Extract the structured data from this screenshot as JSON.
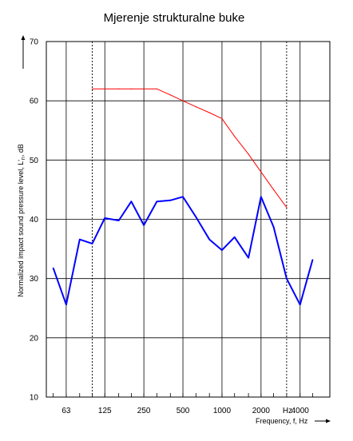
{
  "chart_data": {
    "type": "line",
    "title": "Mjerenje strukturalne buke",
    "ylabel": "Normalized impact sound pressure level, L'",
    "ylabel_unit": ", dB",
    "xlabel": "Frequency, f, Hz",
    "ylim": [
      10,
      70
    ],
    "yticks": [
      "10",
      "20",
      "30",
      "40",
      "50",
      "60",
      "70"
    ],
    "xtick_labels": [
      "63",
      "125",
      "250",
      "500",
      "1000",
      "2000",
      "4000"
    ],
    "xtick_unit_label": "Hz",
    "x_scale": "log",
    "grid": true,
    "x": [
      50,
      63,
      80,
      100,
      125,
      160,
      200,
      250,
      315,
      400,
      500,
      630,
      800,
      1000,
      1250,
      1600,
      2000,
      2500,
      3150,
      4000,
      5000
    ],
    "series": [
      {
        "color": "#0000ff",
        "values": [
          31.8,
          25.6,
          36.6,
          35.9,
          40.2,
          39.8,
          43.0,
          39.0,
          43.0,
          43.2,
          43.8,
          40.4,
          36.6,
          34.8,
          37.0,
          33.5,
          43.8,
          38.7,
          30.0,
          25.6,
          33.2
        ]
      },
      {
        "color": "#ff0000",
        "x": [
          100,
          125,
          160,
          200,
          250,
          315,
          400,
          500,
          630,
          800,
          1000,
          1250,
          1600,
          2000,
          2500,
          3150
        ],
        "values": [
          62,
          62,
          62,
          62,
          62,
          62,
          61,
          60,
          59,
          58,
          57,
          54,
          51,
          48,
          45,
          42
        ]
      }
    ],
    "dashed_vlines_x": [
      100,
      3150
    ]
  }
}
